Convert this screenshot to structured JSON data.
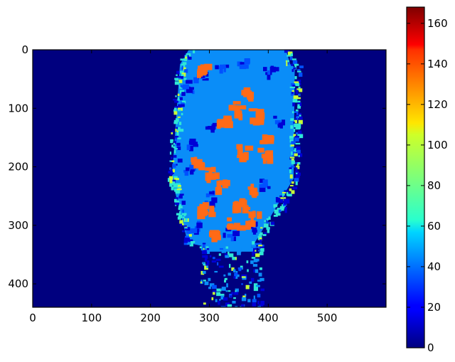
{
  "chart_data": {
    "type": "heatmap",
    "title": "",
    "xlabel": "",
    "ylabel": "",
    "x_ticks": [
      0,
      100,
      200,
      300,
      400,
      500
    ],
    "y_ticks": [
      0,
      100,
      200,
      300,
      400
    ],
    "xlim": [
      0,
      600
    ],
    "ylim": [
      440,
      0
    ],
    "grid": false,
    "colormap": "jet",
    "colorbar": {
      "ticks": [
        0,
        20,
        40,
        60,
        80,
        100,
        120,
        140,
        160
      ],
      "range": [
        0,
        168
      ]
    },
    "background_value": 0,
    "dominant_value": 40,
    "secondary_value": 130,
    "colors": {
      "background": "#00007f",
      "body": "#0a8df8",
      "patch": "#ff6a17",
      "edge_cyan": "#2ee7d6",
      "edge_yellow": "#c8ff36",
      "dark_spot": "#0000d6",
      "mid_blue": "#0051ff"
    }
  }
}
